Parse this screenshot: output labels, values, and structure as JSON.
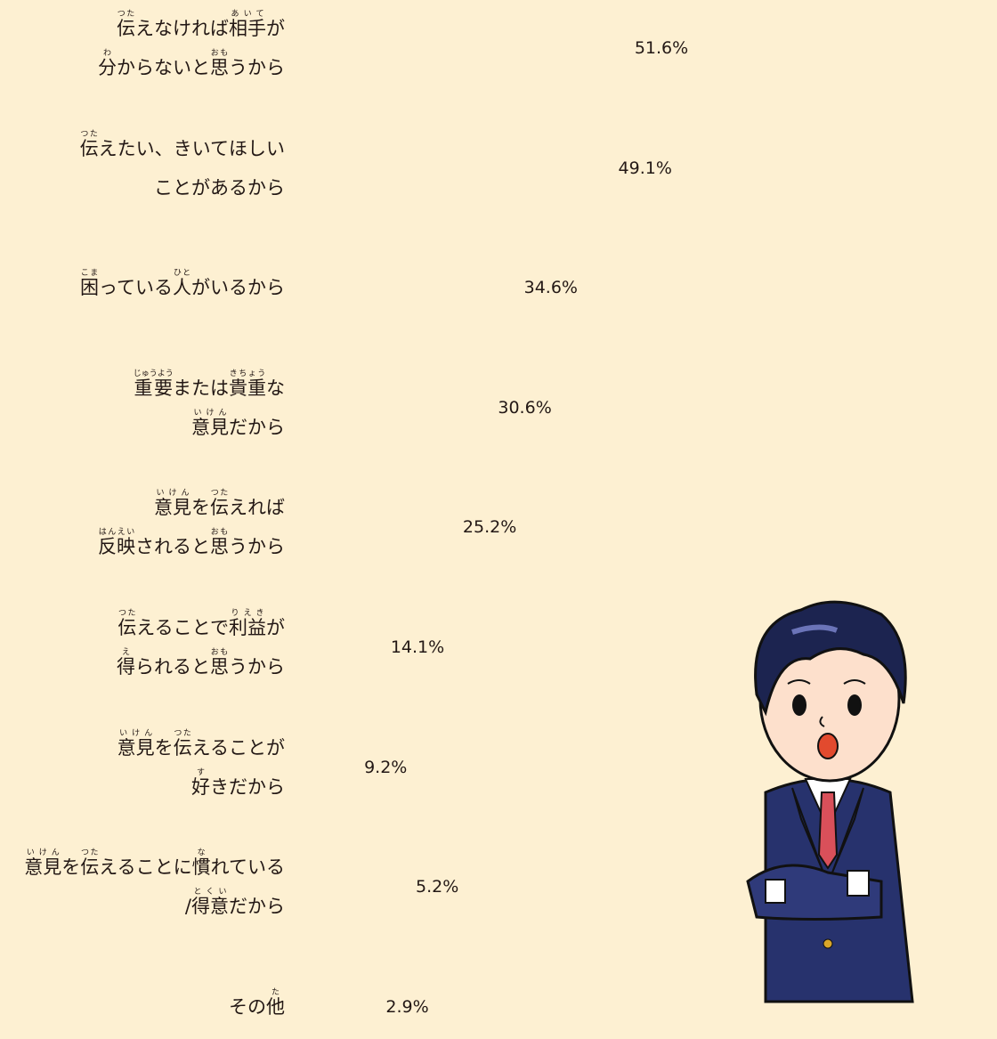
{
  "chart_data": {
    "type": "bar",
    "orientation": "horizontal",
    "categories": [
      [
        [
          "伝",
          "つた"
        ],
        "えなければ",
        [
          "相手",
          "あいて"
        ],
        "が\n",
        [
          "分",
          "わ"
        ],
        "からないと",
        [
          "思",
          "おも"
        ],
        "うから"
      ],
      [
        [
          "伝",
          "つた"
        ],
        "えたい、きいてほしい\nことがあるから"
      ],
      [
        [
          "困",
          "こま"
        ],
        "っている",
        [
          "人",
          "ひと"
        ],
        "がいるから"
      ],
      [
        [
          "重要",
          "じゅうよう"
        ],
        "または",
        [
          "貴重",
          "きちょう"
        ],
        "な\n",
        [
          "意見",
          "いけん"
        ],
        "だから"
      ],
      [
        [
          "意見",
          "いけん"
        ],
        "を",
        [
          "伝",
          "つた"
        ],
        "えれば\n",
        [
          "反映",
          "はんえい"
        ],
        "されると",
        [
          "思",
          "おも"
        ],
        "うから"
      ],
      [
        [
          "伝",
          "つた"
        ],
        "えることで",
        [
          "利益",
          "りえき"
        ],
        "が\n",
        [
          "得",
          "え"
        ],
        "られると",
        [
          "思",
          "おも"
        ],
        "うから"
      ],
      [
        [
          "意見",
          "いけん"
        ],
        "を",
        [
          "伝",
          "つた"
        ],
        "えることが\n",
        [
          "好",
          "す"
        ],
        "きだから"
      ],
      [
        [
          "意見",
          "いけん"
        ],
        "を",
        [
          "伝",
          "つた"
        ],
        "えることに",
        [
          "慣",
          "な"
        ],
        "れている\n/",
        [
          "得意",
          "とくい"
        ],
        "だから"
      ],
      [
        "その",
        [
          "他",
          "た"
        ]
      ]
    ],
    "values": [
      51.6,
      49.1,
      34.6,
      30.6,
      25.2,
      14.1,
      9.2,
      5.2,
      2.9
    ],
    "value_labels": [
      "51.6%",
      "49.1%",
      "34.6%",
      "30.6%",
      "25.2%",
      "14.1%",
      "9.2%",
      "5.2%",
      "2.9%"
    ],
    "color": "#f9ae4b",
    "xlim": [
      0,
      51.6
    ]
  }
}
